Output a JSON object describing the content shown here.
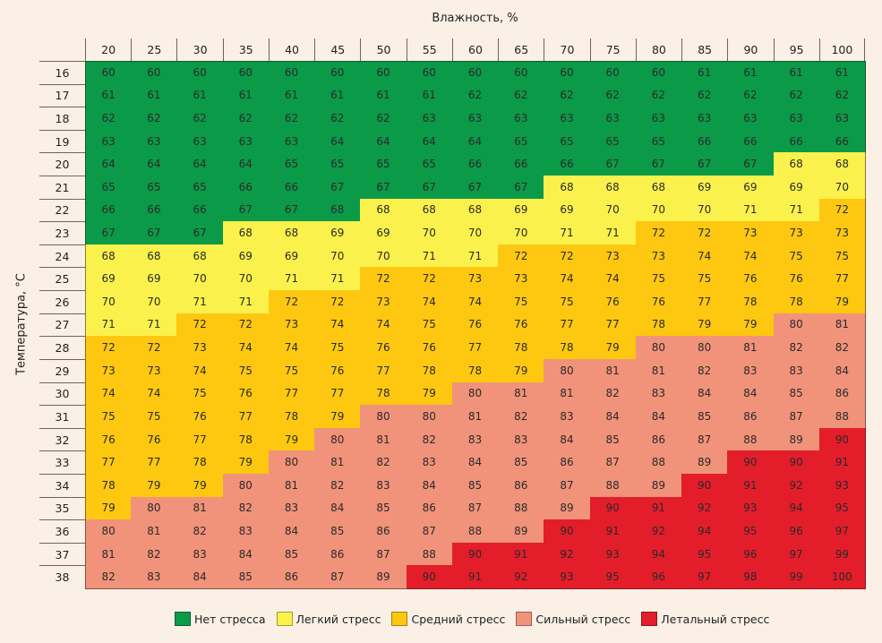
{
  "chart_data": {
    "type": "heatmap",
    "xlabel": "Влажность, %",
    "ylabel": "Температура, °C",
    "columns": [
      "20",
      "25",
      "30",
      "35",
      "40",
      "45",
      "50",
      "55",
      "60",
      "65",
      "70",
      "75",
      "80",
      "85",
      "90",
      "95",
      "100"
    ],
    "rows": [
      "16",
      "17",
      "18",
      "19",
      "20",
      "21",
      "22",
      "23",
      "24",
      "25",
      "26",
      "27",
      "28",
      "29",
      "30",
      "31",
      "32",
      "33",
      "34",
      "35",
      "36",
      "37",
      "38"
    ],
    "values": [
      [
        60,
        60,
        60,
        60,
        60,
        60,
        60,
        60,
        60,
        60,
        60,
        60,
        60,
        61,
        61,
        61,
        61
      ],
      [
        61,
        61,
        61,
        61,
        61,
        61,
        61,
        61,
        62,
        62,
        62,
        62,
        62,
        62,
        62,
        62,
        62
      ],
      [
        62,
        62,
        62,
        62,
        62,
        62,
        62,
        63,
        63,
        63,
        63,
        63,
        63,
        63,
        63,
        63,
        63
      ],
      [
        63,
        63,
        63,
        63,
        63,
        64,
        64,
        64,
        64,
        65,
        65,
        65,
        65,
        66,
        66,
        66,
        66
      ],
      [
        64,
        64,
        64,
        64,
        65,
        65,
        65,
        65,
        66,
        66,
        66,
        67,
        67,
        67,
        67,
        68,
        68
      ],
      [
        65,
        65,
        65,
        66,
        66,
        67,
        67,
        67,
        67,
        67,
        68,
        68,
        68,
        69,
        69,
        69,
        70
      ],
      [
        66,
        66,
        66,
        67,
        67,
        68,
        68,
        68,
        68,
        69,
        69,
        70,
        70,
        70,
        71,
        71,
        72
      ],
      [
        67,
        67,
        67,
        68,
        68,
        69,
        69,
        70,
        70,
        70,
        71,
        71,
        72,
        72,
        73,
        73,
        73
      ],
      [
        68,
        68,
        68,
        69,
        69,
        70,
        70,
        71,
        71,
        72,
        72,
        73,
        73,
        74,
        74,
        75,
        75
      ],
      [
        69,
        69,
        70,
        70,
        71,
        71,
        72,
        72,
        73,
        73,
        74,
        74,
        75,
        75,
        76,
        76,
        77
      ],
      [
        70,
        70,
        71,
        71,
        72,
        72,
        73,
        74,
        74,
        75,
        75,
        76,
        76,
        77,
        78,
        78,
        79
      ],
      [
        71,
        71,
        72,
        72,
        73,
        74,
        74,
        75,
        76,
        76,
        77,
        77,
        78,
        79,
        79,
        80,
        81
      ],
      [
        72,
        72,
        73,
        74,
        74,
        75,
        76,
        76,
        77,
        78,
        78,
        79,
        80,
        80,
        81,
        82,
        82
      ],
      [
        73,
        73,
        74,
        75,
        75,
        76,
        77,
        78,
        78,
        79,
        80,
        81,
        81,
        82,
        83,
        83,
        84
      ],
      [
        74,
        74,
        75,
        76,
        77,
        77,
        78,
        79,
        80,
        81,
        81,
        82,
        83,
        84,
        84,
        85,
        86
      ],
      [
        75,
        75,
        76,
        77,
        78,
        79,
        80,
        80,
        81,
        82,
        83,
        84,
        84,
        85,
        86,
        87,
        88
      ],
      [
        76,
        76,
        77,
        78,
        79,
        80,
        81,
        82,
        83,
        83,
        84,
        85,
        86,
        87,
        88,
        89,
        90
      ],
      [
        77,
        77,
        78,
        79,
        80,
        81,
        82,
        83,
        84,
        85,
        86,
        87,
        88,
        89,
        90,
        90,
        91
      ],
      [
        78,
        79,
        79,
        80,
        81,
        82,
        83,
        84,
        85,
        86,
        87,
        88,
        89,
        90,
        91,
        92,
        93
      ],
      [
        79,
        80,
        81,
        82,
        83,
        84,
        85,
        86,
        87,
        88,
        89,
        90,
        91,
        92,
        93,
        94,
        95
      ],
      [
        80,
        81,
        82,
        83,
        84,
        85,
        86,
        87,
        88,
        89,
        90,
        91,
        92,
        94,
        95,
        96,
        97
      ],
      [
        81,
        82,
        83,
        84,
        85,
        86,
        87,
        88,
        90,
        91,
        92,
        93,
        94,
        95,
        96,
        97,
        99
      ],
      [
        82,
        83,
        84,
        85,
        86,
        87,
        89,
        90,
        91,
        92,
        93,
        95,
        96,
        97,
        98,
        99,
        100
      ]
    ],
    "levels": [
      {
        "label": "Нет стресса",
        "color": "#0b9a48",
        "min": 0
      },
      {
        "label": "Легкий стресс",
        "color": "#fbf14c",
        "min": 68
      },
      {
        "label": "Средний стресс",
        "color": "#fdc80f",
        "min": 72
      },
      {
        "label": "Сильный стресс",
        "color": "#f1937a",
        "min": 80
      },
      {
        "label": "Летальный стресс",
        "color": "#e41d2b",
        "min": 90
      }
    ],
    "overrides": [
      {
        "row": "22",
        "col": "45",
        "level": 0
      }
    ],
    "legend_position": "bottom"
  }
}
